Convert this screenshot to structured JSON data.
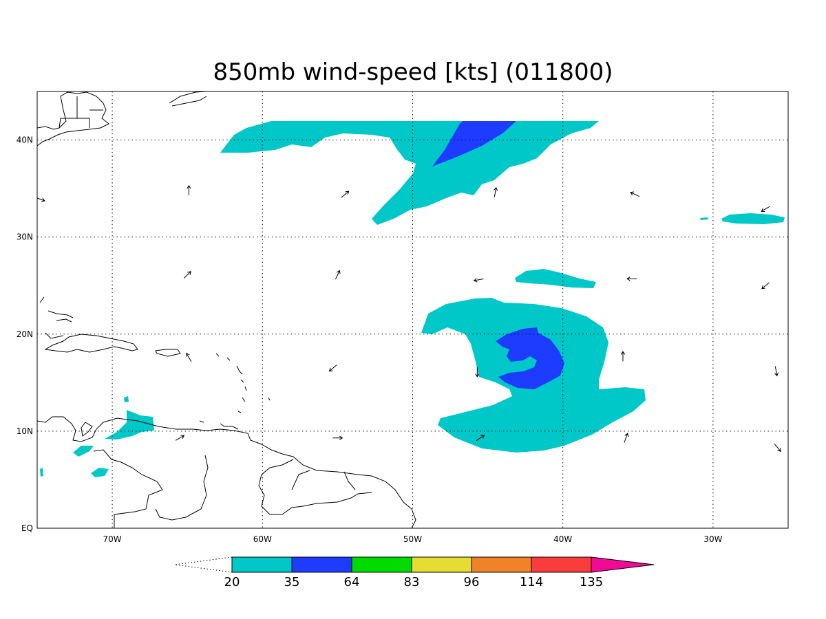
{
  "title": "850mb wind-speed [kts] (011800)",
  "colors": {
    "c20": "#00c8c8",
    "c35": "#1e3cff",
    "c64": "#00dc00",
    "c83": "#e6dc32",
    "c96": "#f08228",
    "c114": "#fa3c3c",
    "c135": "#f00a96"
  },
  "axes": {
    "x_ticks": [
      {
        "lon": -70,
        "label": "70W"
      },
      {
        "lon": -60,
        "label": "60W"
      },
      {
        "lon": -50,
        "label": "50W"
      },
      {
        "lon": -40,
        "label": "40W"
      },
      {
        "lon": -30,
        "label": "30W"
      }
    ],
    "y_ticks": [
      {
        "lat": 0,
        "label": "EQ"
      },
      {
        "lat": 10,
        "label": "10N"
      },
      {
        "lat": 20,
        "label": "20N"
      },
      {
        "lat": 30,
        "label": "30N"
      },
      {
        "lat": 40,
        "label": "40N"
      }
    ],
    "lon_range": [
      -75,
      -25
    ],
    "lat_range": [
      0,
      45
    ]
  },
  "colorbar": {
    "labels": [
      "20",
      "35",
      "64",
      "83",
      "96",
      "114",
      "135"
    ]
  },
  "wind_vectors": [
    {
      "lon": -64.9,
      "lat": 34.8,
      "dir": 90
    },
    {
      "lon": -54.5,
      "lat": 34.4,
      "dir": 40
    },
    {
      "lon": -44.5,
      "lat": 34.6,
      "dir": 80
    },
    {
      "lon": -35.2,
      "lat": 34.4,
      "dir": 155
    },
    {
      "lon": -26.5,
      "lat": 32.9,
      "dir": 210
    },
    {
      "lon": -74.8,
      "lat": 33.9,
      "dir": 340
    },
    {
      "lon": -65.0,
      "lat": 26.1,
      "dir": 45
    },
    {
      "lon": -55.0,
      "lat": 26.1,
      "dir": 65
    },
    {
      "lon": -45.6,
      "lat": 25.6,
      "dir": 190
    },
    {
      "lon": -35.4,
      "lat": 25.7,
      "dir": 180
    },
    {
      "lon": -26.5,
      "lat": 25.0,
      "dir": 220
    },
    {
      "lon": -64.9,
      "lat": 17.6,
      "dir": 120
    },
    {
      "lon": -55.3,
      "lat": 16.5,
      "dir": 220
    },
    {
      "lon": -45.7,
      "lat": 16.1,
      "dir": 270
    },
    {
      "lon": -36.0,
      "lat": 17.7,
      "dir": 90
    },
    {
      "lon": -25.8,
      "lat": 16.2,
      "dir": 280
    },
    {
      "lon": -65.5,
      "lat": 9.3,
      "dir": 30
    },
    {
      "lon": -55.0,
      "lat": 9.3,
      "dir": 0
    },
    {
      "lon": -45.5,
      "lat": 9.3,
      "dir": 35
    },
    {
      "lon": -35.8,
      "lat": 9.3,
      "dir": 70
    },
    {
      "lon": -25.7,
      "lat": 8.3,
      "dir": 310
    }
  ]
}
